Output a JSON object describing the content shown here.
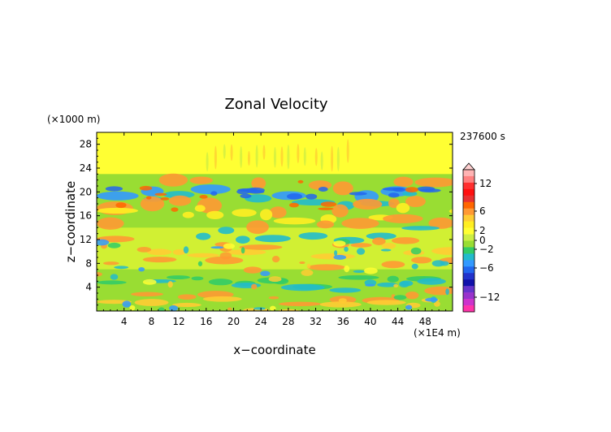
{
  "chart_data": {
    "type": "heatmap",
    "title": "Zonal Velocity",
    "xlabel": "x−coordinate",
    "ylabel": "z−coordinate",
    "x_unit": "(×1E4 m)",
    "y_unit": "(×1000 m)",
    "time_label": "237600 s",
    "xlim": [
      0,
      52
    ],
    "ylim": [
      0,
      30
    ],
    "x_ticks": [
      "4",
      "8",
      "12",
      "16",
      "20",
      "24",
      "28",
      "32",
      "36",
      "40",
      "44",
      "48"
    ],
    "y_ticks": [
      "4",
      "8",
      "12",
      "16",
      "20",
      "24",
      "28"
    ],
    "colorbar": {
      "labels": [
        "12",
        "6",
        "2",
        "0",
        "−2",
        "−6",
        "−12"
      ],
      "colors": [
        "#ffb3b3",
        "#ff8080",
        "#ff3030",
        "#ff1010",
        "#e83030",
        "#ff6600",
        "#ff9933",
        "#ffcc33",
        "#ffee22",
        "#ffff33",
        "#ccee44",
        "#99dd33",
        "#33cc66",
        "#22bbcc",
        "#3399ff",
        "#2266ee",
        "#2233cc",
        "#1111aa",
        "#6633cc",
        "#9933cc",
        "#cc33cc",
        "#ff33aa"
      ]
    },
    "grid": false,
    "legend": "right"
  }
}
